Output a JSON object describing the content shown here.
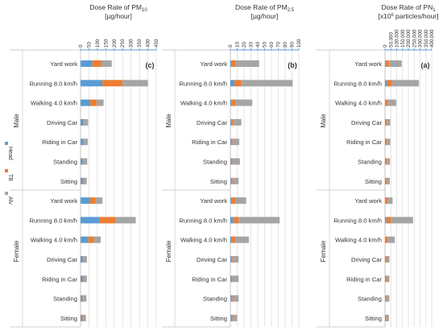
{
  "chart_data": [
    {
      "type": "bar",
      "stacked": true,
      "orientation": "horizontal",
      "title": "Dose Rate of PM10",
      "title_main": "Dose Rate of PM",
      "title_sub": "10",
      "unit": "[µg/hour]",
      "panel_label": "(c)",
      "xlim": [
        0,
        450
      ],
      "ticks": [
        0,
        50,
        100,
        150,
        200,
        250,
        300,
        350,
        400,
        450
      ],
      "tick_labels": [
        "0",
        "50",
        "100",
        "150",
        "200",
        "250",
        "300",
        "350",
        "400",
        "450"
      ],
      "categories": [
        "Yard work",
        "Running 8.0 km/h",
        "Walking 4.0 km/h",
        "Driving Car",
        "Riding in Car",
        "Standing",
        "Sitting",
        "Yard work",
        "Running 8.0 km/h",
        "Walking 4.0 km/h",
        "Driving Car",
        "Riding in Car",
        "Standing",
        "Sitting"
      ],
      "series": [
        {
          "name": "Head",
          "values": [
            70,
            130,
            55,
            15,
            14,
            13,
            12,
            55,
            110,
            45,
            13,
            12,
            11,
            10
          ]
        },
        {
          "name": "TB",
          "values": [
            55,
            120,
            40,
            6,
            5,
            5,
            5,
            35,
            100,
            35,
            5,
            5,
            4,
            4
          ]
        },
        {
          "name": "Alv",
          "values": [
            60,
            150,
            42,
            24,
            24,
            22,
            20,
            40,
            118,
            40,
            20,
            21,
            20,
            18
          ]
        }
      ]
    },
    {
      "type": "bar",
      "stacked": true,
      "orientation": "horizontal",
      "title": "Dose Rate of PM2.5",
      "title_main": "Dose Rate of PM",
      "title_sub": "2.5",
      "unit": "[µg/hour]",
      "panel_label": "(b)",
      "xlim": [
        0,
        100
      ],
      "ticks": [
        0,
        10,
        20,
        30,
        40,
        50,
        60,
        70,
        80,
        90,
        100
      ],
      "tick_labels": [
        "0",
        "10",
        "20",
        "30",
        "40",
        "50",
        "60",
        "70",
        "80",
        "90",
        "100"
      ],
      "categories": [
        "Yard work",
        "Running 8.0 km/h",
        "Walking 4.0 km/h",
        "Driving Car",
        "Riding in Car",
        "Standing",
        "Sitting",
        "Yard work",
        "Running 8.0 km/h",
        "Walking 4.0 km/h",
        "Driving Car",
        "Riding in Car",
        "Standing",
        "Sitting"
      ],
      "series": [
        {
          "name": "Head",
          "values": [
            2,
            6,
            2,
            1,
            1,
            1,
            1,
            2,
            4,
            2,
            1,
            1,
            1,
            1
          ]
        },
        {
          "name": "TB",
          "values": [
            6,
            10,
            6,
            3,
            2,
            2,
            2,
            5,
            8,
            5,
            2,
            2,
            2,
            2
          ]
        },
        {
          "name": "Alv",
          "values": [
            34,
            75,
            24,
            12,
            10,
            11,
            9,
            16,
            60,
            20,
            9,
            9,
            9,
            7
          ]
        }
      ]
    },
    {
      "type": "bar",
      "stacked": true,
      "orientation": "horizontal",
      "title": "Dose Rate of PN1",
      "title_main": "Dose Rate of PN",
      "title_sub": "1",
      "unit_pre": "[x10",
      "unit_sup": "6",
      "unit_post": " particles/hour]",
      "panel_label": "(a)",
      "xlim": [
        0,
        400000
      ],
      "ticks": [
        0,
        50000,
        100000,
        150000,
        200000,
        250000,
        300000,
        350000,
        400000
      ],
      "tick_labels": [
        "0",
        "50,000",
        "100,000",
        "150,000",
        "200,000",
        "250,000",
        "300,000",
        "350,000",
        "400,000"
      ],
      "categories": [
        "Yard work",
        "Running 8.0 km/h",
        "Walking 4.0 km/h",
        "Driving Car",
        "Riding in Car",
        "Standing",
        "Sitting",
        "Yard work",
        "Running 8.0 km/h",
        "Walking 4.0 km/h",
        "Driving Car",
        "Riding in Car",
        "Standing",
        "Sitting"
      ],
      "series": [
        {
          "name": "Head",
          "values": [
            8000,
            16000,
            6000,
            3000,
            3000,
            3000,
            2500,
            6000,
            12000,
            5000,
            2500,
            2500,
            2500,
            2000
          ]
        },
        {
          "name": "TB",
          "values": [
            25000,
            45000,
            20000,
            12000,
            12000,
            12000,
            11000,
            17000,
            38000,
            17000,
            11000,
            11000,
            10000,
            10000
          ]
        },
        {
          "name": "Alv",
          "values": [
            110000,
            230000,
            70000,
            30000,
            30000,
            28000,
            28000,
            42000,
            190000,
            62000,
            25000,
            24000,
            25000,
            22000
          ]
        }
      ]
    }
  ],
  "groups": [
    "Male",
    "Female"
  ],
  "legend": [
    "Head",
    "TB",
    "Alv"
  ],
  "colors": {
    "Head": "#5b9bd5",
    "TB": "#ed7d31",
    "Alv": "#a5a5a5"
  }
}
